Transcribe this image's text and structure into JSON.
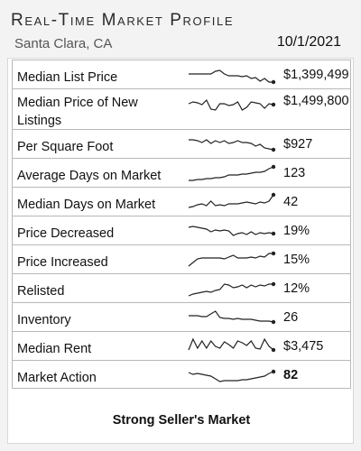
{
  "header": {
    "title": "Real-Time Market Profile",
    "location": "Santa Clara, CA",
    "date": "10/1/2021"
  },
  "rows": [
    {
      "label": "Median List Price",
      "value": "$1,399,499",
      "bold": false,
      "tall": false,
      "trend": [
        0.55,
        0.55,
        0.55,
        0.55,
        0.55,
        0.55,
        0.7,
        0.75,
        0.55,
        0.45,
        0.45,
        0.45,
        0.4,
        0.45,
        0.3,
        0.35,
        0.15,
        0.3,
        0.1,
        0.1
      ]
    },
    {
      "label": "Median Price of New Listings",
      "value": "$1,499,800",
      "bold": false,
      "tall": true,
      "trend": [
        0.6,
        0.7,
        0.65,
        0.55,
        0.8,
        0.3,
        0.25,
        0.6,
        0.6,
        0.5,
        0.55,
        0.7,
        0.25,
        0.4,
        0.7,
        0.65,
        0.6,
        0.35,
        0.6,
        0.55
      ]
    },
    {
      "label": "Per Square Foot",
      "value": "$927",
      "bold": false,
      "tall": false,
      "trend": [
        0.75,
        0.75,
        0.7,
        0.6,
        0.75,
        0.55,
        0.7,
        0.6,
        0.7,
        0.55,
        0.6,
        0.7,
        0.6,
        0.6,
        0.55,
        0.4,
        0.5,
        0.3,
        0.25,
        0.2
      ]
    },
    {
      "label": "Average Days on Market",
      "value": "123",
      "bold": false,
      "tall": false,
      "trend": [
        0.1,
        0.1,
        0.15,
        0.15,
        0.2,
        0.2,
        0.25,
        0.25,
        0.3,
        0.4,
        0.4,
        0.4,
        0.45,
        0.45,
        0.5,
        0.55,
        0.55,
        0.6,
        0.75,
        0.85
      ]
    },
    {
      "label": "Median Days on Market",
      "value": "42",
      "bold": false,
      "tall": false,
      "trend": [
        0.2,
        0.25,
        0.35,
        0.4,
        0.3,
        0.55,
        0.3,
        0.35,
        0.3,
        0.4,
        0.4,
        0.4,
        0.45,
        0.5,
        0.45,
        0.4,
        0.5,
        0.45,
        0.55,
        0.9
      ]
    },
    {
      "label": "Price Decreased",
      "value": "19%",
      "bold": false,
      "tall": false,
      "trend": [
        0.7,
        0.75,
        0.7,
        0.65,
        0.6,
        0.45,
        0.55,
        0.5,
        0.55,
        0.5,
        0.25,
        0.35,
        0.4,
        0.3,
        0.45,
        0.3,
        0.4,
        0.35,
        0.4,
        0.35
      ]
    },
    {
      "label": "Price Increased",
      "value": "15%",
      "bold": false,
      "tall": false,
      "trend": [
        0.15,
        0.35,
        0.55,
        0.6,
        0.6,
        0.6,
        0.6,
        0.6,
        0.55,
        0.65,
        0.75,
        0.6,
        0.6,
        0.6,
        0.65,
        0.6,
        0.7,
        0.65,
        0.85,
        0.85
      ]
    },
    {
      "label": "Relisted",
      "value": "12%",
      "bold": false,
      "tall": false,
      "trend": [
        0.1,
        0.2,
        0.25,
        0.3,
        0.35,
        0.3,
        0.4,
        0.45,
        0.75,
        0.7,
        0.55,
        0.6,
        0.7,
        0.55,
        0.7,
        0.6,
        0.7,
        0.65,
        0.75,
        0.75
      ]
    },
    {
      "label": "Inventory",
      "value": "26",
      "bold": false,
      "tall": false,
      "trend": [
        0.6,
        0.6,
        0.6,
        0.55,
        0.55,
        0.7,
        0.85,
        0.5,
        0.45,
        0.45,
        0.4,
        0.45,
        0.4,
        0.4,
        0.4,
        0.35,
        0.3,
        0.3,
        0.3,
        0.25
      ]
    },
    {
      "label": "Median Rent",
      "value": "$3,475",
      "bold": false,
      "tall": false,
      "trend": [
        0.3,
        0.9,
        0.4,
        0.8,
        0.4,
        0.8,
        0.5,
        0.4,
        0.75,
        0.6,
        0.4,
        0.8,
        0.7,
        0.55,
        0.8,
        0.4,
        0.35,
        0.9,
        0.5,
        0.3
      ]
    },
    {
      "label": "Market Action",
      "value": "82",
      "bold": true,
      "tall": false,
      "trend": [
        0.65,
        0.55,
        0.6,
        0.55,
        0.5,
        0.45,
        0.3,
        0.15,
        0.2,
        0.2,
        0.2,
        0.2,
        0.25,
        0.25,
        0.3,
        0.35,
        0.4,
        0.45,
        0.6,
        0.7
      ]
    }
  ],
  "footer": {
    "text": "Strong Seller's Market"
  },
  "colors": {
    "line": "#222222",
    "border": "#b8b8b8"
  }
}
